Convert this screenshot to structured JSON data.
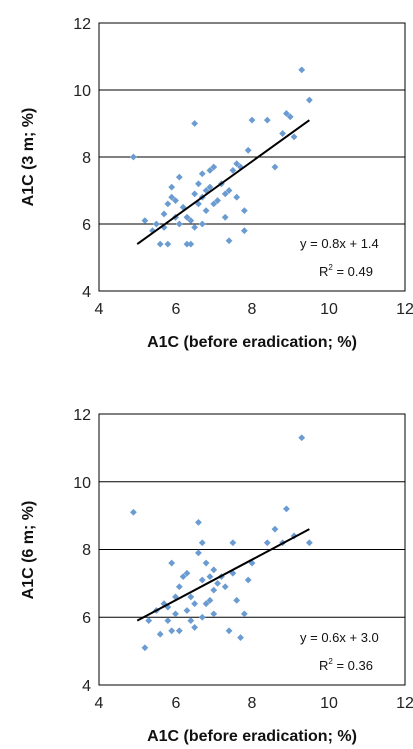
{
  "chart_data": [
    {
      "type": "scatter",
      "title": "",
      "xlabel": "A1C (before eradication; %)",
      "ylabel": "A1C (3 m; %)",
      "xlim": [
        4,
        12
      ],
      "ylim": [
        4,
        12
      ],
      "xticks": [
        "4",
        "6",
        "8",
        "10",
        "12"
      ],
      "yticks": [
        "4",
        "6",
        "8",
        "10",
        "12"
      ],
      "grid": "horizontal",
      "marker_color": "#6A9BD1",
      "line_color": "#000000",
      "equation": "y = 0.8x + 1.4",
      "r2": {
        "prefix": "R",
        "sup": "2",
        "value": " = 0.49"
      },
      "fit_line": {
        "x": [
          5.0,
          9.5
        ],
        "y": [
          5.4,
          9.1
        ]
      },
      "points": [
        [
          4.9,
          8.0
        ],
        [
          5.2,
          6.1
        ],
        [
          5.4,
          5.8
        ],
        [
          5.5,
          6.0
        ],
        [
          5.6,
          5.4
        ],
        [
          5.7,
          6.3
        ],
        [
          5.7,
          5.9
        ],
        [
          5.8,
          6.6
        ],
        [
          5.8,
          5.4
        ],
        [
          5.9,
          6.8
        ],
        [
          5.9,
          7.1
        ],
        [
          6.0,
          6.2
        ],
        [
          6.0,
          6.7
        ],
        [
          6.1,
          7.4
        ],
        [
          6.1,
          6.0
        ],
        [
          6.2,
          6.5
        ],
        [
          6.3,
          6.2
        ],
        [
          6.3,
          5.4
        ],
        [
          6.4,
          6.1
        ],
        [
          6.4,
          5.4
        ],
        [
          6.5,
          6.9
        ],
        [
          6.5,
          5.9
        ],
        [
          6.5,
          9.0
        ],
        [
          6.6,
          6.6
        ],
        [
          6.6,
          7.2
        ],
        [
          6.7,
          6.0
        ],
        [
          6.7,
          7.5
        ],
        [
          6.7,
          6.8
        ],
        [
          6.8,
          7.0
        ],
        [
          6.8,
          6.4
        ],
        [
          6.9,
          7.6
        ],
        [
          6.9,
          7.1
        ],
        [
          7.0,
          6.6
        ],
        [
          7.0,
          7.7
        ],
        [
          7.1,
          6.7
        ],
        [
          7.2,
          7.2
        ],
        [
          7.3,
          6.9
        ],
        [
          7.3,
          6.2
        ],
        [
          7.4,
          7.0
        ],
        [
          7.4,
          5.5
        ],
        [
          7.5,
          7.6
        ],
        [
          7.6,
          7.8
        ],
        [
          7.6,
          6.8
        ],
        [
          7.7,
          7.7
        ],
        [
          7.8,
          6.4
        ],
        [
          7.8,
          5.8
        ],
        [
          7.9,
          8.2
        ],
        [
          8.0,
          9.1
        ],
        [
          8.4,
          9.1
        ],
        [
          8.6,
          7.7
        ],
        [
          8.8,
          8.7
        ],
        [
          8.9,
          9.3
        ],
        [
          9.0,
          9.2
        ],
        [
          9.1,
          8.6
        ],
        [
          9.3,
          10.6
        ],
        [
          9.5,
          9.7
        ]
      ]
    },
    {
      "type": "scatter",
      "title": "",
      "xlabel": "A1C (before eradication; %)",
      "ylabel": "A1C (6 m; %)",
      "xlim": [
        4,
        12
      ],
      "ylim": [
        4,
        12
      ],
      "xticks": [
        "4",
        "6",
        "8",
        "10",
        "12"
      ],
      "yticks": [
        "4",
        "6",
        "8",
        "10",
        "12"
      ],
      "grid": "horizontal",
      "marker_color": "#6A9BD1",
      "line_color": "#000000",
      "equation": "y = 0.6x + 3.0",
      "r2": {
        "prefix": "R",
        "sup": "2",
        "value": " = 0.36"
      },
      "fit_line": {
        "x": [
          5.0,
          9.5
        ],
        "y": [
          5.9,
          8.6
        ]
      },
      "points": [
        [
          4.9,
          9.1
        ],
        [
          5.2,
          5.1
        ],
        [
          5.3,
          5.9
        ],
        [
          5.5,
          6.2
        ],
        [
          5.6,
          5.5
        ],
        [
          5.7,
          6.4
        ],
        [
          5.8,
          5.9
        ],
        [
          5.8,
          6.3
        ],
        [
          5.9,
          5.6
        ],
        [
          5.9,
          7.6
        ],
        [
          6.0,
          6.1
        ],
        [
          6.0,
          6.6
        ],
        [
          6.1,
          5.6
        ],
        [
          6.1,
          6.9
        ],
        [
          6.2,
          7.2
        ],
        [
          6.3,
          6.2
        ],
        [
          6.3,
          7.3
        ],
        [
          6.4,
          6.6
        ],
        [
          6.4,
          5.9
        ],
        [
          6.5,
          5.7
        ],
        [
          6.5,
          6.4
        ],
        [
          6.6,
          7.9
        ],
        [
          6.6,
          8.8
        ],
        [
          6.7,
          6.0
        ],
        [
          6.7,
          7.1
        ],
        [
          6.7,
          8.2
        ],
        [
          6.8,
          6.4
        ],
        [
          6.8,
          7.6
        ],
        [
          6.9,
          7.2
        ],
        [
          6.9,
          6.5
        ],
        [
          7.0,
          6.1
        ],
        [
          7.0,
          7.4
        ],
        [
          7.0,
          6.8
        ],
        [
          7.1,
          7.0
        ],
        [
          7.2,
          7.2
        ],
        [
          7.3,
          6.9
        ],
        [
          7.4,
          5.6
        ],
        [
          7.5,
          7.3
        ],
        [
          7.5,
          8.2
        ],
        [
          7.6,
          6.5
        ],
        [
          7.7,
          5.4
        ],
        [
          7.8,
          6.1
        ],
        [
          7.9,
          7.1
        ],
        [
          8.0,
          7.6
        ],
        [
          8.4,
          8.2
        ],
        [
          8.6,
          8.6
        ],
        [
          8.8,
          8.2
        ],
        [
          8.9,
          9.2
        ],
        [
          9.1,
          8.4
        ],
        [
          9.3,
          11.3
        ],
        [
          9.5,
          8.2
        ]
      ]
    }
  ]
}
